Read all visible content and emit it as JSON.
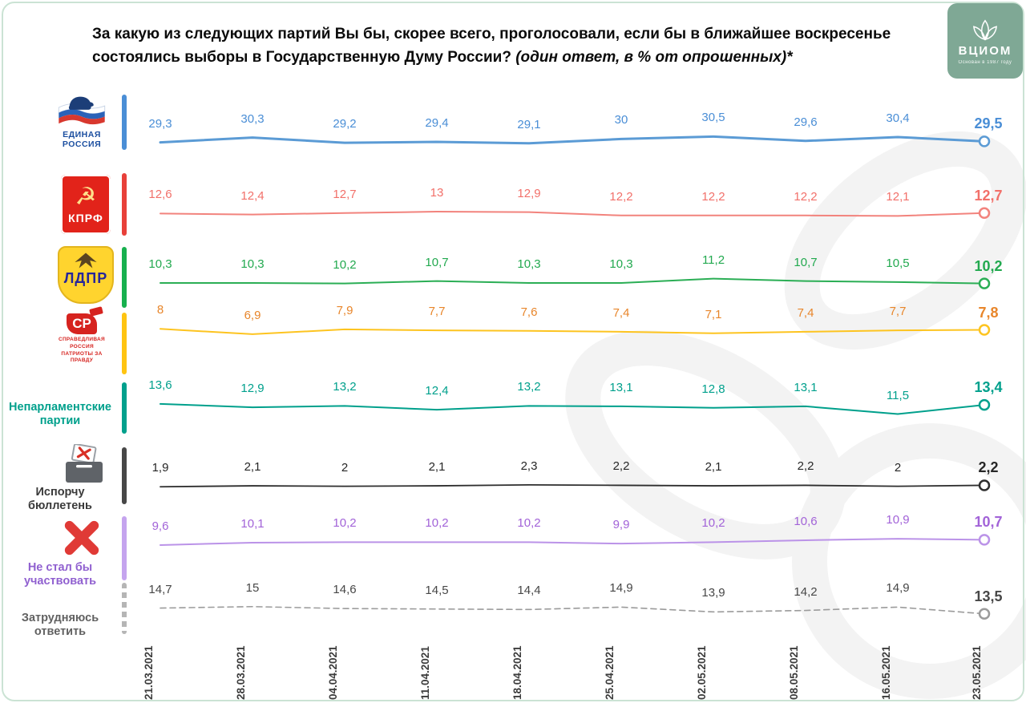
{
  "title": {
    "line1": "За какую из следующих партий Вы бы, скорее всего, проголосовали, если бы в ближайшее воскресенье",
    "line2": "состоялись выборы в Государственную Думу России?",
    "note": "(один ответ, в % от опрошенных)*"
  },
  "logo": {
    "brand": "ВЦИОМ",
    "tagline": "Основан в 1987 году"
  },
  "rows": [
    {
      "logo_line1": "ЕДИНАЯ",
      "logo_line2": "РОССИЯ"
    },
    {
      "logo_line1": "КПРФ"
    },
    {
      "logo_line1": "ЛДПР"
    },
    {
      "logo_line1": "СР",
      "logo_line2": "СПРАВЕДЛИВАЯ",
      "logo_line3": "РОССИЯ",
      "logo_line4": "ПАТРИОТЫ ЗА ПРАВДУ"
    },
    {
      "label_line1": "Непарламентские",
      "label_line2": "партии"
    },
    {
      "label_line1": "Испорчу",
      "label_line2": "бюллетень"
    },
    {
      "label_line1": "Не стал бы",
      "label_line2": "участвовать"
    },
    {
      "label_line1": "Затрудняюсь",
      "label_line2": "ответить"
    }
  ],
  "chart_data": {
    "type": "line",
    "x": [
      "21.03.2021",
      "28.03.2021",
      "04.04.2021",
      "11.04.2021",
      "18.04.2021",
      "25.04.2021",
      "02.05.2021",
      "08.05.2021",
      "16.05.2021",
      "23.05.2021"
    ],
    "series": [
      {
        "name": "Единая Россия",
        "label_color": "#4a8ed6",
        "line_color": "#5b9bd5",
        "bar_color": "#4a8ed6",
        "line_width": 3,
        "dashed": false,
        "values": [
          "29,3",
          "30,3",
          "29,2",
          "29,4",
          "29,1",
          "30",
          "30,5",
          "29,6",
          "30,4",
          "29,5"
        ]
      },
      {
        "name": "КПРФ",
        "label_color": "#f2706a",
        "line_color": "#f2837d",
        "bar_color": "#e8403a",
        "line_width": 2,
        "dashed": false,
        "values": [
          "12,6",
          "12,4",
          "12,7",
          "13",
          "12,9",
          "12,2",
          "12,2",
          "12,2",
          "12,1",
          "12,7"
        ]
      },
      {
        "name": "ЛДПР",
        "label_color": "#22a94f",
        "line_color": "#2bae55",
        "bar_color": "#17b04e",
        "line_width": 2,
        "dashed": false,
        "values": [
          "10,3",
          "10,3",
          "10,2",
          "10,7",
          "10,3",
          "10,3",
          "11,2",
          "10,7",
          "10,5",
          "10,2"
        ]
      },
      {
        "name": "Справедливая Россия — Патриоты — За правду",
        "label_color": "#e8862b",
        "line_color": "#fdc420",
        "bar_color": "#ffc411",
        "line_width": 2,
        "dashed": false,
        "values": [
          "8",
          "6,9",
          "7,9",
          "7,7",
          "7,6",
          "7,4",
          "7,1",
          "7,4",
          "7,7",
          "7,8"
        ]
      },
      {
        "name": "Непарламентские партии",
        "label_color": "#00a08c",
        "line_color": "#00a08c",
        "bar_color": "#00a08c",
        "line_width": 2,
        "dashed": false,
        "values": [
          "13,6",
          "12,9",
          "13,2",
          "12,4",
          "13,2",
          "13,1",
          "12,8",
          "13,1",
          "11,5",
          "13,4"
        ]
      },
      {
        "name": "Испорчу бюллетень",
        "label_color": "#262626",
        "line_color": "#2e2e2e",
        "bar_color": "#474747",
        "line_width": 1.8,
        "dashed": false,
        "values": [
          "1,9",
          "2,1",
          "2",
          "2,1",
          "2,3",
          "2,2",
          "2,1",
          "2,2",
          "2",
          "2,2"
        ]
      },
      {
        "name": "Не стал бы участвовать",
        "label_color": "#a263d8",
        "line_color": "#bb93e8",
        "bar_color": "#c5a4ee",
        "line_width": 2,
        "dashed": false,
        "values": [
          "9,6",
          "10,1",
          "10,2",
          "10,2",
          "10,2",
          "9,9",
          "10,2",
          "10,6",
          "10,9",
          "10,7"
        ]
      },
      {
        "name": "Затрудняюсь ответить",
        "label_color": "#474747",
        "line_color": "#9b9b9b",
        "bar_color": "#b5b5b5",
        "line_width": 1.6,
        "dashed": true,
        "values": [
          "14,7",
          "15",
          "14,6",
          "14,5",
          "14,4",
          "14,9",
          "13,9",
          "14,2",
          "14,9",
          "13,5"
        ]
      }
    ]
  }
}
